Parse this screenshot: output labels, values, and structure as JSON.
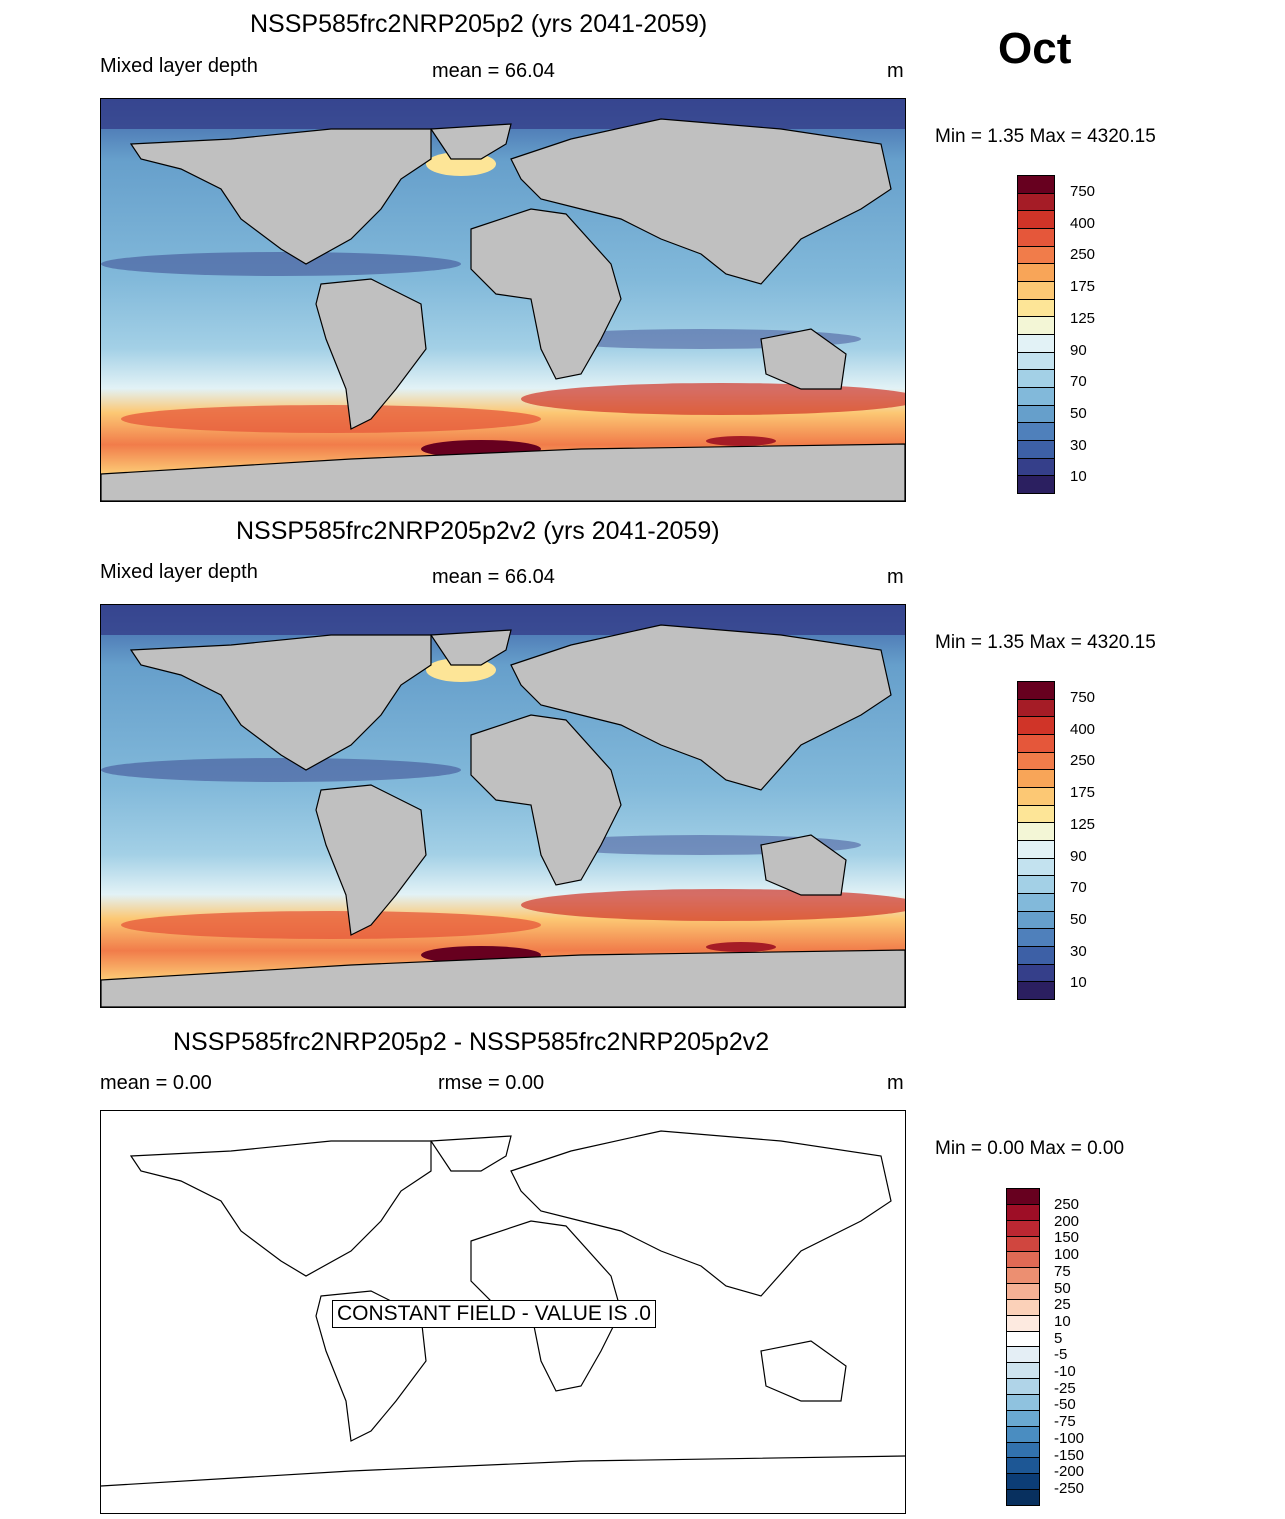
{
  "month": "Oct",
  "units": "m",
  "panels": [
    {
      "title": "NSSP585frc2NRP205p2 (yrs 2041-2059)",
      "variable": "Mixed layer depth",
      "mean_text": "mean =  66.04",
      "units": "m",
      "minmax_text": "Min =   1.35 Max = 4320.15"
    },
    {
      "title": "NSSP585frc2NRP205p2v2 (yrs 2041-2059)",
      "variable": "Mixed layer depth",
      "mean_text": "mean =  66.04",
      "units": "m",
      "minmax_text": "Min =   1.35 Max = 4320.15"
    },
    {
      "title": "NSSP585frc2NRP205p2 - NSSP585frc2NRP205p2v2",
      "mean_text": "mean =   0.00",
      "rmse_text": "rmse =   0.00",
      "units": "m",
      "minmax_text": "Min =   0.00 Max =   0.00",
      "constant_field_text": "CONSTANT FIELD - VALUE IS .0"
    }
  ],
  "colorbar_mld": {
    "labels": [
      "750",
      "400",
      "250",
      "175",
      "125",
      "90",
      "70",
      "50",
      "30",
      "10"
    ],
    "colors": [
      "#67001f",
      "#a51c26",
      "#d03428",
      "#e5573a",
      "#f17c4a",
      "#f8a558",
      "#fcc874",
      "#fde597",
      "#f3f6d6",
      "#e2f2f6",
      "#c3e2ef",
      "#a3d0e6",
      "#82b9da",
      "#669fcb",
      "#4f80bb",
      "#3d60a6",
      "#353f8a",
      "#2b1f60"
    ]
  },
  "colorbar_diff": {
    "labels": [
      "250",
      "200",
      "150",
      "100",
      "75",
      "50",
      "25",
      "10",
      "5",
      "-5",
      "-10",
      "-25",
      "-50",
      "-75",
      "-100",
      "-150",
      "-200",
      "-250"
    ],
    "colors": [
      "#67001f",
      "#9e0e26",
      "#bb2732",
      "#d0463f",
      "#e06a55",
      "#ec8f71",
      "#f6b195",
      "#fbd1b9",
      "#fdeae0",
      "#ffffff",
      "#e4eef5",
      "#cde3ef",
      "#b0d4e8",
      "#8fc2df",
      "#6aa9d1",
      "#4a8dc1",
      "#3272ae",
      "#1d5795",
      "#0c3d76",
      "#08305f"
    ]
  }
}
